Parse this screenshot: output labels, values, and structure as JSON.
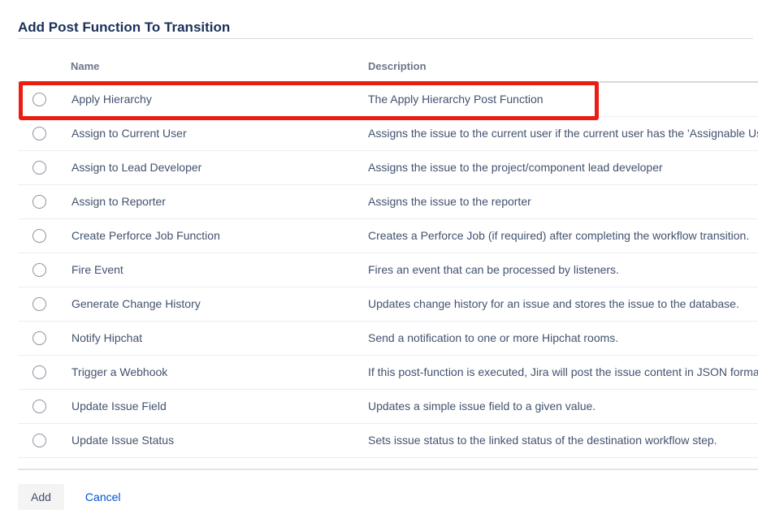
{
  "page": {
    "title": "Add Post Function To Transition"
  },
  "table": {
    "columns": {
      "name": "Name",
      "description": "Description"
    },
    "rows": [
      {
        "name": "Apply Hierarchy",
        "description": "The Apply Hierarchy Post Function",
        "highlighted": true
      },
      {
        "name": "Assign to Current User",
        "description": "Assigns the issue to the current user if the current user has the 'Assignable User' permission.",
        "highlighted": false
      },
      {
        "name": "Assign to Lead Developer",
        "description": "Assigns the issue to the project/component lead developer",
        "highlighted": false
      },
      {
        "name": "Assign to Reporter",
        "description": "Assigns the issue to the reporter",
        "highlighted": false
      },
      {
        "name": "Create Perforce Job Function",
        "description": "Creates a Perforce Job (if required) after completing the workflow transition.",
        "highlighted": false
      },
      {
        "name": "Fire Event",
        "description": "Fires an event that can be processed by listeners.",
        "highlighted": false
      },
      {
        "name": "Generate Change History",
        "description": "Updates change history for an issue and stores the issue to the database.",
        "highlighted": false
      },
      {
        "name": "Notify Hipchat",
        "description": "Send a notification to one or more Hipchat rooms.",
        "highlighted": false
      },
      {
        "name": "Trigger a Webhook",
        "description": "If this post-function is executed, Jira will post the issue content in JSON format to the URL specified.",
        "highlighted": false
      },
      {
        "name": "Update Issue Field",
        "description": "Updates a simple issue field to a given value.",
        "highlighted": false
      },
      {
        "name": "Update Issue Status",
        "description": "Sets issue status to the linked status of the destination workflow step.",
        "highlighted": false
      }
    ]
  },
  "actions": {
    "add_label": "Add",
    "cancel_label": "Cancel"
  },
  "colors": {
    "annotation_red": "#ec1c12",
    "link_blue": "#0052cc",
    "title_navy": "#1b3159"
  }
}
